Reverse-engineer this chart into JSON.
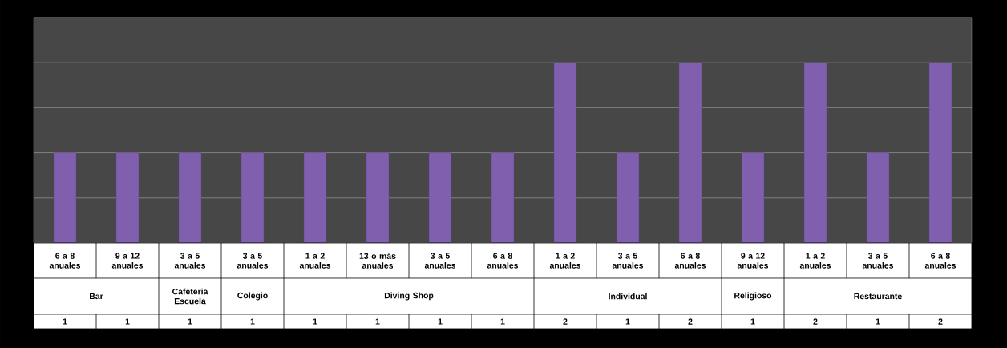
{
  "chart_data": {
    "type": "bar",
    "categories": [
      "6 a 8 anuales",
      "9 a 12 anuales",
      "3 a 5 anuales",
      "3 a 5 anuales",
      "1 a 2 anuales",
      "13 o más anuales",
      "3 a 5 anuales",
      "6 a 8 anuales",
      "1 a 2 anuales",
      "3 a 5 anuales",
      "6 a 8 anuales",
      "9 a 12 anuales",
      "1 a 2 anuales",
      "3 a 5 anuales",
      "6 a 8 anuales"
    ],
    "values": [
      1,
      1,
      1,
      1,
      1,
      1,
      1,
      1,
      2,
      1,
      2,
      1,
      2,
      1,
      2
    ],
    "color": "#7f5fae",
    "annotations": [
      "Bar",
      "Cafeteria Escuela",
      "Colegio",
      "Diving Shop",
      "Individual",
      "Religioso",
      "Restaurante"
    ],
    "ylim": [
      0,
      2.5
    ],
    "yticks": [
      {
        "value": 0,
        "label": null
      },
      {
        "value": 0.5,
        "label": null
      },
      {
        "value": 1,
        "label": null
      },
      {
        "value": 1.5,
        "label": null
      },
      {
        "value": 2,
        "label": null
      },
      {
        "value": 2.5,
        "label": null
      }
    ],
    "grid": "y",
    "data_labels": true,
    "tick_labels": "x"
  }
}
